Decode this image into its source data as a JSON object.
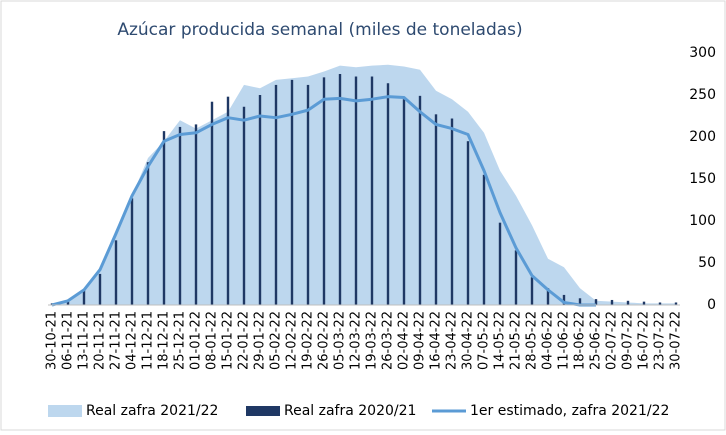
{
  "chart_data": {
    "type": "combo",
    "title": "Azúcar producida semanal (miles de toneladas)",
    "categories": [
      "30-10-21",
      "06-11-21",
      "13-11-21",
      "20-11-21",
      "27-11-21",
      "04-12-21",
      "11-12-21",
      "18-12-21",
      "25-12-21",
      "01-01-22",
      "08-01-22",
      "15-01-22",
      "22-01-22",
      "29-01-22",
      "05-02-22",
      "12-02-22",
      "19-02-22",
      "26-02-22",
      "05-03-22",
      "12-03-22",
      "19-03-22",
      "26-03-22",
      "02-04-22",
      "09-04-22",
      "16-04-22",
      "23-04-22",
      "30-04-22",
      "07-05-22",
      "14-05-22",
      "21-05-22",
      "28-05-22",
      "04-06-22",
      "11-06-22",
      "18-06-22",
      "25-06-22",
      "02-07-22",
      "09-07-22",
      "16-07-22",
      "23-07-22",
      "30-07-22"
    ],
    "series": [
      {
        "name": "Real zafra 2021/22",
        "kind": "area",
        "color": "#bdd7ee",
        "values": [
          0,
          5,
          20,
          45,
          90,
          130,
          175,
          195,
          220,
          210,
          220,
          230,
          262,
          258,
          268,
          270,
          272,
          278,
          285,
          283,
          285,
          286,
          284,
          280,
          255,
          245,
          230,
          205,
          160,
          130,
          95,
          55,
          45,
          20,
          5,
          4,
          3,
          2,
          2,
          2
        ]
      },
      {
        "name": "Real zafra 2020/21",
        "kind": "bar",
        "color": "#1f3864",
        "values": [
          2,
          5,
          18,
          37,
          77,
          127,
          170,
          207,
          212,
          215,
          242,
          248,
          236,
          250,
          262,
          268,
          262,
          271,
          275,
          272,
          272,
          264,
          245,
          249,
          227,
          222,
          195,
          155,
          98,
          65,
          33,
          20,
          12,
          8,
          7,
          6,
          5,
          4,
          3,
          3
        ]
      },
      {
        "name": "1er estimado, zafra 2021/22",
        "kind": "line",
        "color": "#5b9bd5",
        "values": [
          0,
          5,
          18,
          42,
          85,
          130,
          165,
          195,
          203,
          205,
          215,
          223,
          220,
          225,
          223,
          227,
          232,
          245,
          246,
          243,
          245,
          248,
          247,
          230,
          215,
          210,
          203,
          160,
          110,
          68,
          35,
          18,
          3,
          0,
          0,
          null,
          null,
          null,
          null,
          null
        ]
      }
    ],
    "ylim": [
      0,
      300
    ],
    "yticks": [
      0,
      50,
      100,
      150,
      200,
      250,
      300
    ]
  }
}
